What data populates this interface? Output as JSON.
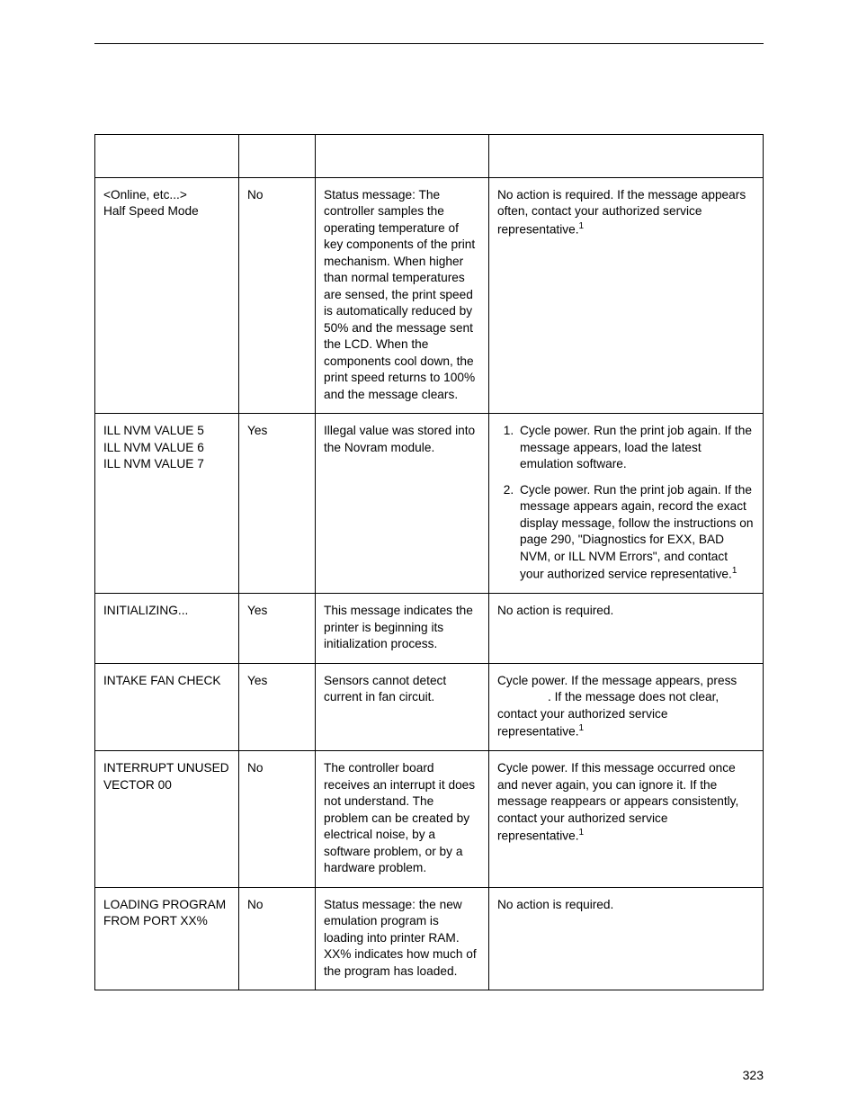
{
  "page_number": "323",
  "table": {
    "rows": [
      {
        "msg_line1": "<Online, etc...>",
        "msg_line2": "Half Speed Mode",
        "clear": "No",
        "explanation": "Status message: The controller samples the operating temperature of key components of the print mechanism. When higher than normal temperatures are sensed, the print speed is automatically reduced by 50% and the message sent the LCD. When the components cool down, the print speed returns to 100% and the message clears.",
        "action_plain": "No action is required. If the message appears often, contact your authorized service representative.",
        "action_footnote": "1"
      },
      {
        "msg_line1": "ILL NVM VALUE 5",
        "msg_line2": "ILL NVM VALUE 6",
        "msg_line3": "ILL NVM VALUE 7",
        "clear": "Yes",
        "explanation": "Illegal value was stored into the Novram module.",
        "action_step1": "Cycle power. Run the print job again. If the message appears, load the latest emulation software.",
        "action_step2": "Cycle power. Run the print job again. If the message appears again, record the exact display message, follow the instructions on page 290, \"Diagnostics for EXX, BAD NVM, or ILL NVM Errors\", and contact your authorized service representative.",
        "action_footnote": "1"
      },
      {
        "msg_line1": "INITIALIZING...",
        "clear": "Yes",
        "explanation": "This message indicates the printer is beginning its initialization process.",
        "action_plain": "No action is required."
      },
      {
        "msg_line1": "INTAKE FAN CHECK",
        "clear": "Yes",
        "explanation": "Sensors cannot detect current in fan circuit.",
        "action_pre": "Cycle power. If the message appears, press",
        "action_post": ". If the message does not clear, contact your authorized service representative.",
        "action_footnote": "1"
      },
      {
        "msg_line1": "INTERRUPT UNUSED",
        "msg_line2": "VECTOR 00",
        "clear": "No",
        "explanation": "The controller board receives an interrupt it does not understand. The problem can be created by electrical noise, by a software problem, or by a hardware problem.",
        "action_plain": "Cycle power. If this message occurred once and never again, you can ignore it. If the message reappears or appears consistently, contact your authorized service representative.",
        "action_footnote": "1"
      },
      {
        "msg_line1": "LOADING PROGRAM",
        "msg_line2": "FROM PORT XX%",
        "clear": "No",
        "explanation": "Status message: the new emulation program is loading into printer RAM. XX% indicates how much of the program has loaded.",
        "action_plain": "No action is required."
      }
    ]
  }
}
